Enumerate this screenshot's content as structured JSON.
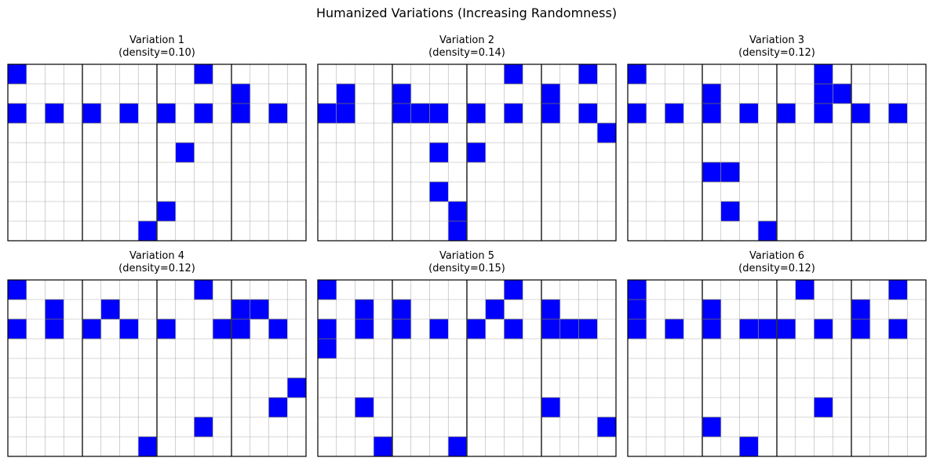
{
  "title": "Humanized Variations (Increasing Randomness)",
  "colors": {
    "active": "#0000ff",
    "gridline": "#b0b0b0",
    "beat_line": "#333333",
    "frame": "#000000"
  },
  "chart_data": [
    {
      "type": "heatmap",
      "title_line1": "Variation 1",
      "title_line2": "(density=0.10)",
      "rows": 9,
      "cols": 16,
      "beat_dividers_every": 4,
      "active_cells": [
        [
          0,
          0
        ],
        [
          0,
          10
        ],
        [
          1,
          12
        ],
        [
          2,
          0
        ],
        [
          2,
          2
        ],
        [
          2,
          4
        ],
        [
          2,
          6
        ],
        [
          2,
          8
        ],
        [
          2,
          10
        ],
        [
          2,
          12
        ],
        [
          2,
          14
        ],
        [
          4,
          9
        ],
        [
          7,
          8
        ],
        [
          8,
          7
        ]
      ]
    },
    {
      "type": "heatmap",
      "title_line1": "Variation 2",
      "title_line2": "(density=0.14)",
      "rows": 9,
      "cols": 16,
      "beat_dividers_every": 4,
      "active_cells": [
        [
          0,
          10
        ],
        [
          0,
          14
        ],
        [
          1,
          1
        ],
        [
          1,
          4
        ],
        [
          1,
          12
        ],
        [
          2,
          0
        ],
        [
          2,
          1
        ],
        [
          2,
          4
        ],
        [
          2,
          5
        ],
        [
          2,
          6
        ],
        [
          2,
          8
        ],
        [
          2,
          10
        ],
        [
          2,
          12
        ],
        [
          2,
          14
        ],
        [
          3,
          15
        ],
        [
          4,
          6
        ],
        [
          4,
          8
        ],
        [
          6,
          6
        ],
        [
          7,
          7
        ],
        [
          8,
          7
        ]
      ]
    },
    {
      "type": "heatmap",
      "title_line1": "Variation 3",
      "title_line2": "(density=0.12)",
      "rows": 9,
      "cols": 16,
      "beat_dividers_every": 4,
      "active_cells": [
        [
          0,
          0
        ],
        [
          0,
          10
        ],
        [
          1,
          4
        ],
        [
          1,
          10
        ],
        [
          1,
          11
        ],
        [
          2,
          0
        ],
        [
          2,
          2
        ],
        [
          2,
          4
        ],
        [
          2,
          6
        ],
        [
          2,
          8
        ],
        [
          2,
          10
        ],
        [
          2,
          12
        ],
        [
          2,
          14
        ],
        [
          5,
          4
        ],
        [
          5,
          5
        ],
        [
          7,
          5
        ],
        [
          8,
          7
        ]
      ]
    },
    {
      "type": "heatmap",
      "title_line1": "Variation 4",
      "title_line2": "(density=0.12)",
      "rows": 9,
      "cols": 16,
      "beat_dividers_every": 4,
      "active_cells": [
        [
          0,
          0
        ],
        [
          0,
          10
        ],
        [
          1,
          2
        ],
        [
          1,
          5
        ],
        [
          1,
          12
        ],
        [
          1,
          13
        ],
        [
          2,
          0
        ],
        [
          2,
          2
        ],
        [
          2,
          4
        ],
        [
          2,
          6
        ],
        [
          2,
          8
        ],
        [
          2,
          11
        ],
        [
          2,
          12
        ],
        [
          2,
          14
        ],
        [
          5,
          15
        ],
        [
          6,
          14
        ],
        [
          7,
          10
        ],
        [
          8,
          7
        ]
      ]
    },
    {
      "type": "heatmap",
      "title_line1": "Variation 5",
      "title_line2": "(density=0.15)",
      "rows": 9,
      "cols": 16,
      "beat_dividers_every": 4,
      "active_cells": [
        [
          0,
          0
        ],
        [
          0,
          10
        ],
        [
          1,
          2
        ],
        [
          1,
          4
        ],
        [
          1,
          9
        ],
        [
          1,
          12
        ],
        [
          2,
          0
        ],
        [
          2,
          2
        ],
        [
          2,
          4
        ],
        [
          2,
          6
        ],
        [
          2,
          8
        ],
        [
          2,
          10
        ],
        [
          2,
          12
        ],
        [
          2,
          13
        ],
        [
          2,
          14
        ],
        [
          3,
          0
        ],
        [
          6,
          2
        ],
        [
          6,
          12
        ],
        [
          7,
          15
        ],
        [
          8,
          3
        ],
        [
          8,
          7
        ]
      ]
    },
    {
      "type": "heatmap",
      "title_line1": "Variation 6",
      "title_line2": "(density=0.12)",
      "rows": 9,
      "cols": 16,
      "beat_dividers_every": 4,
      "active_cells": [
        [
          0,
          0
        ],
        [
          0,
          9
        ],
        [
          0,
          14
        ],
        [
          1,
          0
        ],
        [
          1,
          4
        ],
        [
          1,
          12
        ],
        [
          2,
          0
        ],
        [
          2,
          2
        ],
        [
          2,
          4
        ],
        [
          2,
          6
        ],
        [
          2,
          7
        ],
        [
          2,
          8
        ],
        [
          2,
          10
        ],
        [
          2,
          12
        ],
        [
          2,
          14
        ],
        [
          6,
          10
        ],
        [
          7,
          4
        ],
        [
          8,
          6
        ]
      ]
    }
  ]
}
